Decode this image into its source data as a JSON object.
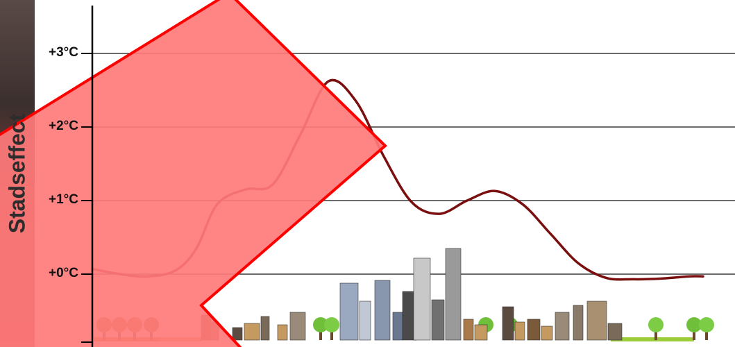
{
  "chart_data": {
    "type": "line",
    "title": "",
    "xlabel": "",
    "ylabel": "Stadseffect",
    "y_ticks": [
      "+0°C",
      "+1°C",
      "+2°C",
      "+3°C"
    ],
    "ylim": [
      -1,
      3.6
    ],
    "grid": true,
    "series": [
      {
        "color": "#7a0f0f",
        "x": [
          0,
          4,
          8,
          12,
          15,
          18,
          22,
          26,
          30,
          34,
          38,
          42,
          46,
          50,
          54,
          58,
          62,
          66,
          70,
          74,
          78,
          82,
          86,
          88
        ],
        "y": [
          0.07,
          0.0,
          -0.03,
          0.05,
          0.35,
          0.95,
          1.15,
          1.22,
          1.9,
          2.62,
          2.35,
          1.6,
          0.98,
          0.82,
          1.0,
          1.13,
          0.95,
          0.55,
          0.15,
          -0.05,
          -0.07,
          -0.06,
          -0.03,
          -0.03
        ]
      }
    ]
  },
  "colors": {
    "axis": "#000000",
    "grid": "#3a3a3a",
    "curve": "#7a0f0f",
    "overlay": "#ff0000",
    "overlay_fill": "#ff7a7a"
  }
}
